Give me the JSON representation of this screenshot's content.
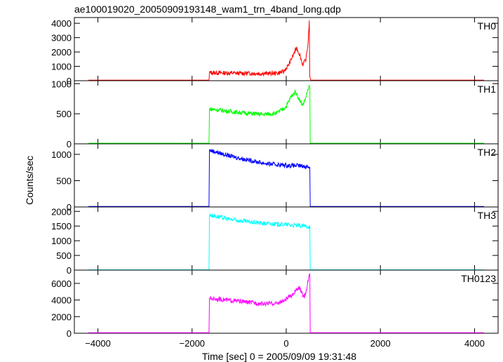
{
  "title": "ae100019020_20050909193148_wam1_trn_4band_long.qdp",
  "chart_data": {
    "type": "line",
    "ylabel": "Counts/sec",
    "xlabel": "Time [sec] 0 = 2005/09/09 19:31:48",
    "x_range": [
      -4500,
      4500
    ],
    "x_ticks": [
      -4000,
      -2000,
      0,
      2000,
      4000
    ],
    "x_tick_labels": [
      "−4000",
      "−2000",
      "0",
      "2000",
      "4000"
    ],
    "grid": false,
    "panels": [
      {
        "name": "TH0",
        "color": "#ff0000",
        "ylim": [
          0,
          4400
        ],
        "yticks": [
          0,
          1000,
          2000,
          3000,
          4000
        ],
        "data": [
          [
            -4200,
            40
          ],
          [
            -1640,
            40
          ],
          [
            -1630,
            560
          ],
          [
            -1000,
            520
          ],
          [
            -500,
            500
          ],
          [
            -200,
            520
          ],
          [
            -50,
            640
          ],
          [
            50,
            1100
          ],
          [
            150,
            1800
          ],
          [
            220,
            2300
          ],
          [
            300,
            1700
          ],
          [
            350,
            1100
          ],
          [
            420,
            1500
          ],
          [
            460,
            2500
          ],
          [
            490,
            4200
          ],
          [
            500,
            300
          ],
          [
            520,
            40
          ],
          [
            4200,
            40
          ]
        ]
      },
      {
        "name": "TH1",
        "color": "#00ff00",
        "ylim": [
          0,
          1050
        ],
        "yticks": [
          0,
          500,
          1000
        ],
        "data": [
          [
            -4200,
            10
          ],
          [
            -1640,
            10
          ],
          [
            -1630,
            580
          ],
          [
            -1000,
            520
          ],
          [
            -500,
            490
          ],
          [
            -200,
            510
          ],
          [
            0,
            620
          ],
          [
            100,
            780
          ],
          [
            200,
            870
          ],
          [
            280,
            730
          ],
          [
            350,
            640
          ],
          [
            420,
            780
          ],
          [
            470,
            920
          ],
          [
            500,
            950
          ],
          [
            510,
            10
          ],
          [
            4200,
            10
          ]
        ]
      },
      {
        "name": "TH2",
        "color": "#0000ff",
        "ylim": [
          0,
          1200
        ],
        "yticks": [
          0,
          500,
          1000
        ],
        "data": [
          [
            -4200,
            10
          ],
          [
            -1640,
            10
          ],
          [
            -1630,
            1080
          ],
          [
            -1200,
            970
          ],
          [
            -800,
            890
          ],
          [
            -400,
            820
          ],
          [
            0,
            790
          ],
          [
            250,
            785
          ],
          [
            500,
            760
          ],
          [
            510,
            10
          ],
          [
            4200,
            10
          ]
        ]
      },
      {
        "name": "TH3",
        "color": "#00ffff",
        "ylim": [
          0,
          2150
        ],
        "yticks": [
          0,
          500,
          1000,
          1500,
          2000
        ],
        "data": [
          [
            -4200,
            10
          ],
          [
            -1640,
            10
          ],
          [
            -1630,
            1880
          ],
          [
            -1200,
            1730
          ],
          [
            -800,
            1640
          ],
          [
            -400,
            1580
          ],
          [
            0,
            1550
          ],
          [
            500,
            1480
          ],
          [
            510,
            10
          ],
          [
            4200,
            10
          ]
        ]
      },
      {
        "name": "TH0123",
        "color": "#ff00ff",
        "ylim": [
          0,
          7600
        ],
        "yticks": [
          0,
          2000,
          4000,
          6000
        ],
        "data": [
          [
            -4200,
            60
          ],
          [
            -1640,
            60
          ],
          [
            -1630,
            4200
          ],
          [
            -1000,
            3850
          ],
          [
            -500,
            3550
          ],
          [
            -200,
            3600
          ],
          [
            -50,
            3900
          ],
          [
            100,
            4500
          ],
          [
            200,
            5100
          ],
          [
            280,
            5500
          ],
          [
            330,
            4800
          ],
          [
            380,
            4300
          ],
          [
            430,
            5200
          ],
          [
            480,
            6800
          ],
          [
            500,
            7200
          ],
          [
            510,
            60
          ],
          [
            4200,
            60
          ]
        ]
      }
    ]
  }
}
